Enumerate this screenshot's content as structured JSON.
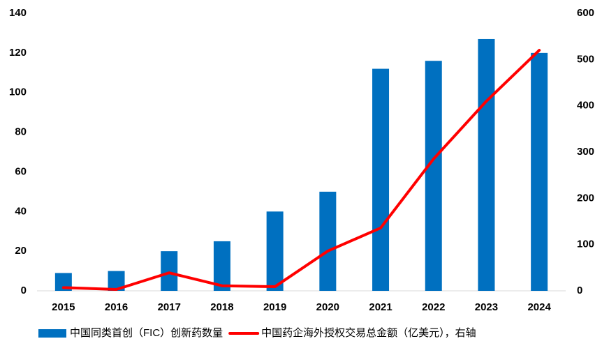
{
  "chart_data": {
    "type": "bar",
    "categories": [
      "2015",
      "2016",
      "2017",
      "2018",
      "2019",
      "2020",
      "2021",
      "2022",
      "2023",
      "2024"
    ],
    "series": [
      {
        "name": "中国同类首创（FIC）创新药数量",
        "type": "bar",
        "color": "#0070c0",
        "values": [
          9,
          10,
          20,
          25,
          40,
          50,
          112,
          116,
          127,
          120
        ]
      },
      {
        "name": "中国药企海外授权交易总金额（亿美元），右轴",
        "type": "line",
        "axis": "y2",
        "color": "#ff0000",
        "values": [
          7,
          3,
          39,
          11,
          9,
          86,
          136,
          285,
          410,
          520
        ]
      }
    ],
    "ylim": [
      0,
      140
    ],
    "yticks": [
      0,
      20,
      40,
      60,
      80,
      100,
      120,
      140
    ],
    "y2lim": [
      0,
      600
    ],
    "y2ticks": [
      0,
      100,
      200,
      300,
      400,
      500,
      600
    ],
    "grid": false,
    "legend": "bottom"
  }
}
